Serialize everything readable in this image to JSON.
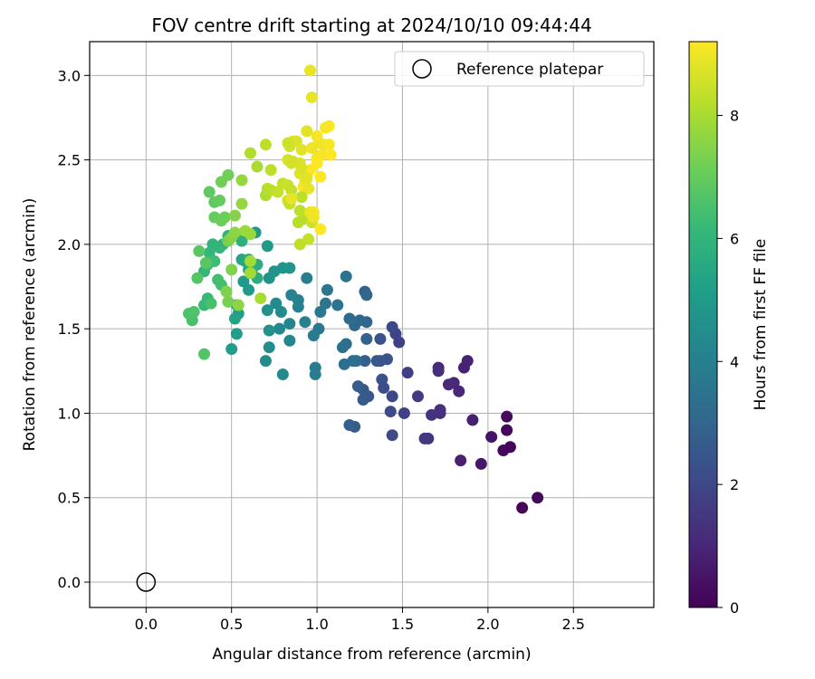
{
  "chart_data": {
    "type": "scatter",
    "title": "FOV centre drift starting at 2024/10/10 09:44:44",
    "xlabel": "Angular distance from reference (arcmin)",
    "ylabel": "Rotation from reference (arcmin)",
    "xlim": [
      -0.33,
      2.97
    ],
    "ylim": [
      -0.15,
      3.2
    ],
    "xticks": [
      "0.0",
      "0.5",
      "1.0",
      "1.5",
      "2.0",
      "2.5"
    ],
    "xtick_values": [
      0,
      0.5,
      1.0,
      1.5,
      2.0,
      2.5
    ],
    "yticks": [
      "0.0",
      "0.5",
      "1.0",
      "1.5",
      "2.0",
      "2.5",
      "3.0"
    ],
    "ytick_values": [
      0,
      0.5,
      1.0,
      1.5,
      2.0,
      2.5,
      3.0
    ],
    "grid": true,
    "legend_position": "top-right",
    "reference": {
      "name": "Reference platepar",
      "x": 0,
      "y": 0,
      "marker": "hollow circle"
    },
    "colorbar": {
      "label": "Hours from first FF file",
      "range": [
        0,
        9.2
      ],
      "ticks": [
        "0",
        "2",
        "4",
        "6",
        "8"
      ],
      "tick_values": [
        0,
        2,
        4,
        6,
        8
      ],
      "colormap": "viridis"
    },
    "colormap_stops": [
      "#440154",
      "#482878",
      "#3e4989",
      "#31688e",
      "#26828e",
      "#1f9e89",
      "#35b779",
      "#6ece58",
      "#b5de2b",
      "#fde725"
    ],
    "series": [
      {
        "points": [
          [
            2.2,
            0.44,
            0.1
          ],
          [
            2.29,
            0.5,
            0.2
          ],
          [
            2.09,
            0.78,
            0.2
          ],
          [
            2.13,
            0.8,
            0.15
          ],
          [
            2.11,
            0.9,
            0.2
          ],
          [
            2.11,
            0.98,
            0.25
          ],
          [
            2.02,
            0.86,
            0.5
          ],
          [
            1.96,
            0.7,
            0.6
          ],
          [
            1.84,
            0.72,
            0.8
          ],
          [
            1.91,
            0.96,
            0.8
          ],
          [
            1.88,
            1.31,
            0.9
          ],
          [
            1.86,
            1.27,
            0.9
          ],
          [
            1.83,
            1.13,
            1.0
          ],
          [
            1.8,
            1.18,
            1.0
          ],
          [
            1.77,
            1.17,
            1.1
          ],
          [
            1.71,
            1.27,
            1.1
          ],
          [
            1.71,
            1.25,
            1.2
          ],
          [
            1.72,
            1.0,
            1.2
          ],
          [
            1.72,
            1.02,
            1.3
          ],
          [
            1.67,
            0.99,
            1.4
          ],
          [
            1.65,
            0.85,
            1.4
          ],
          [
            1.63,
            0.85,
            1.5
          ],
          [
            1.59,
            1.1,
            1.6
          ],
          [
            1.53,
            1.24,
            1.7
          ],
          [
            1.51,
            1.0,
            1.8
          ],
          [
            1.48,
            1.42,
            1.8
          ],
          [
            1.46,
            1.47,
            1.9
          ],
          [
            1.44,
            1.51,
            2.0
          ],
          [
            1.44,
            1.1,
            2.0
          ],
          [
            1.43,
            1.01,
            2.1
          ],
          [
            1.44,
            0.87,
            2.1
          ],
          [
            1.39,
            1.15,
            2.2
          ],
          [
            1.38,
            1.2,
            2.3
          ],
          [
            1.37,
            1.44,
            2.3
          ],
          [
            1.41,
            1.32,
            2.4
          ],
          [
            1.37,
            1.31,
            2.4
          ],
          [
            1.35,
            1.31,
            2.5
          ],
          [
            1.3,
            1.1,
            2.5
          ],
          [
            1.27,
            1.08,
            2.6
          ],
          [
            1.27,
            1.14,
            2.6
          ],
          [
            1.24,
            1.16,
            2.7
          ],
          [
            1.22,
            0.92,
            2.7
          ],
          [
            1.19,
            0.93,
            2.8
          ],
          [
            1.28,
            1.31,
            2.8
          ],
          [
            1.29,
            1.44,
            2.9
          ],
          [
            1.28,
            1.72,
            2.9
          ],
          [
            1.29,
            1.7,
            3.0
          ],
          [
            1.29,
            1.54,
            3.0
          ],
          [
            1.25,
            1.55,
            3.1
          ],
          [
            1.22,
            1.52,
            3.1
          ],
          [
            1.19,
            1.56,
            3.2
          ],
          [
            1.23,
            1.31,
            3.2
          ],
          [
            1.21,
            1.31,
            3.3
          ],
          [
            1.17,
            1.41,
            3.3
          ],
          [
            1.15,
            1.39,
            3.4
          ],
          [
            1.16,
            1.29,
            3.4
          ],
          [
            1.17,
            1.81,
            3.5
          ],
          [
            1.12,
            1.64,
            3.5
          ],
          [
            1.06,
            1.73,
            3.6
          ],
          [
            1.05,
            1.65,
            3.6
          ],
          [
            1.02,
            1.6,
            3.7
          ],
          [
            1.01,
            1.5,
            3.7
          ],
          [
            0.98,
            1.46,
            3.8
          ],
          [
            0.99,
            1.27,
            3.8
          ],
          [
            0.99,
            1.23,
            3.9
          ],
          [
            0.94,
            1.8,
            3.9
          ],
          [
            0.93,
            1.54,
            4.0
          ],
          [
            0.89,
            1.63,
            4.0
          ],
          [
            0.89,
            1.67,
            4.1
          ],
          [
            0.85,
            1.7,
            4.1
          ],
          [
            0.84,
            1.53,
            4.2
          ],
          [
            0.84,
            1.43,
            4.2
          ],
          [
            0.8,
            1.23,
            4.3
          ],
          [
            0.78,
            1.5,
            4.3
          ],
          [
            0.79,
            1.6,
            4.4
          ],
          [
            0.76,
            1.65,
            4.4
          ],
          [
            0.72,
            1.39,
            4.5
          ],
          [
            0.7,
            1.31,
            4.5
          ],
          [
            0.72,
            1.49,
            4.6
          ],
          [
            0.71,
            1.61,
            4.6
          ],
          [
            0.72,
            1.8,
            4.7
          ],
          [
            0.75,
            1.84,
            4.7
          ],
          [
            0.8,
            1.86,
            4.8
          ],
          [
            0.84,
            1.86,
            4.8
          ],
          [
            0.71,
            1.99,
            4.9
          ],
          [
            0.64,
            2.07,
            4.9
          ],
          [
            0.6,
            1.73,
            5.0
          ],
          [
            0.57,
            1.78,
            5.0
          ],
          [
            0.53,
            1.47,
            5.1
          ],
          [
            0.5,
            1.38,
            5.1
          ],
          [
            0.54,
            1.59,
            5.2
          ],
          [
            0.52,
            1.56,
            5.3
          ],
          [
            0.53,
            1.64,
            5.4
          ],
          [
            0.56,
            1.91,
            5.4
          ],
          [
            0.58,
            1.9,
            5.5
          ],
          [
            0.6,
            1.85,
            5.5
          ],
          [
            0.6,
            1.91,
            5.6
          ],
          [
            0.62,
            1.85,
            5.6
          ],
          [
            0.65,
            1.8,
            5.7
          ],
          [
            0.65,
            1.88,
            5.7
          ],
          [
            0.56,
            2.02,
            5.8
          ],
          [
            0.52,
            2.05,
            5.8
          ],
          [
            0.48,
            2.05,
            5.9
          ],
          [
            0.45,
            2.0,
            5.9
          ],
          [
            0.43,
            1.98,
            6.0
          ],
          [
            0.39,
            2.0,
            6.0
          ],
          [
            0.37,
            1.95,
            6.1
          ],
          [
            0.34,
            1.84,
            6.1
          ],
          [
            0.36,
            1.68,
            6.2
          ],
          [
            0.34,
            1.64,
            6.2
          ],
          [
            0.36,
            1.88,
            6.3
          ],
          [
            0.4,
            1.9,
            6.3
          ],
          [
            0.42,
            1.79,
            6.4
          ],
          [
            0.44,
            1.76,
            6.4
          ],
          [
            0.38,
            1.65,
            6.5
          ],
          [
            0.27,
            1.55,
            6.5
          ],
          [
            0.25,
            1.59,
            6.6
          ],
          [
            0.28,
            1.6,
            6.6
          ],
          [
            0.34,
            1.35,
            6.7
          ],
          [
            0.3,
            1.8,
            6.7
          ],
          [
            0.31,
            1.96,
            6.8
          ],
          [
            0.35,
            1.89,
            6.8
          ],
          [
            0.37,
            2.31,
            6.9
          ],
          [
            0.4,
            2.25,
            6.9
          ],
          [
            0.4,
            2.16,
            7.0
          ],
          [
            0.43,
            2.26,
            7.0
          ],
          [
            0.44,
            2.14,
            7.1
          ],
          [
            0.46,
            2.16,
            7.1
          ],
          [
            0.44,
            2.37,
            7.2
          ],
          [
            0.48,
            2.41,
            7.2
          ],
          [
            0.48,
            2.02,
            7.3
          ],
          [
            0.48,
            1.66,
            7.3
          ],
          [
            0.5,
            1.85,
            7.4
          ],
          [
            0.47,
            1.72,
            7.4
          ],
          [
            0.5,
            2.04,
            7.5
          ],
          [
            0.52,
            2.17,
            7.5
          ],
          [
            0.52,
            2.07,
            7.6
          ],
          [
            0.54,
            1.64,
            7.6
          ],
          [
            0.56,
            2.24,
            7.7
          ],
          [
            0.56,
            2.38,
            7.7
          ],
          [
            0.58,
            2.08,
            7.8
          ],
          [
            0.61,
            2.06,
            7.8
          ],
          [
            0.61,
            1.83,
            7.9
          ],
          [
            0.61,
            1.9,
            7.9
          ],
          [
            0.67,
            1.68,
            8.0
          ],
          [
            0.65,
            2.46,
            8.0
          ],
          [
            0.61,
            2.54,
            8.1
          ],
          [
            0.7,
            2.29,
            8.1
          ],
          [
            0.73,
            2.32,
            8.2
          ],
          [
            0.71,
            2.33,
            8.2
          ],
          [
            0.73,
            2.44,
            8.3
          ],
          [
            0.7,
            2.59,
            8.3
          ],
          [
            0.77,
            2.31,
            8.4
          ],
          [
            0.8,
            2.36,
            8.4
          ],
          [
            0.83,
            2.26,
            8.5
          ],
          [
            0.83,
            2.35,
            8.5
          ],
          [
            0.83,
            2.5,
            8.6
          ],
          [
            0.86,
            2.49,
            8.6
          ],
          [
            0.86,
            2.61,
            8.7
          ],
          [
            0.88,
            2.61,
            8.7
          ],
          [
            0.91,
            2.56,
            8.8
          ],
          [
            0.94,
            2.67,
            8.8
          ],
          [
            0.97,
            2.87,
            8.9
          ],
          [
            0.96,
            3.03,
            8.9
          ],
          [
            0.97,
            2.57,
            9.0
          ],
          [
            1.01,
            2.6,
            9.0
          ],
          [
            1.0,
            2.51,
            9.1
          ],
          [
            1.03,
            2.53,
            9.1
          ],
          [
            1.04,
            2.59,
            9.0
          ],
          [
            1.07,
            2.59,
            9.1
          ],
          [
            1.08,
            2.53,
            9.2
          ],
          [
            1.07,
            2.7,
            9.2
          ],
          [
            1.05,
            2.69,
            9.1
          ],
          [
            1.0,
            2.64,
            9.1
          ],
          [
            1.0,
            2.48,
            9.2
          ],
          [
            1.02,
            2.4,
            9.2
          ],
          [
            0.96,
            2.44,
            9.2
          ],
          [
            0.94,
            2.4,
            9.1
          ],
          [
            0.92,
            2.34,
            9.1
          ],
          [
            0.93,
            2.37,
            9.0
          ],
          [
            0.95,
            2.33,
            8.9
          ],
          [
            0.94,
            2.39,
            8.8
          ],
          [
            0.9,
            2.42,
            8.8
          ],
          [
            0.9,
            2.48,
            8.7
          ],
          [
            0.91,
            2.45,
            8.7
          ],
          [
            0.85,
            2.48,
            8.6
          ],
          [
            0.84,
            2.58,
            8.6
          ],
          [
            0.83,
            2.6,
            8.5
          ],
          [
            0.85,
            2.32,
            8.4
          ],
          [
            0.84,
            2.24,
            8.4
          ],
          [
            0.91,
            2.28,
            8.3
          ],
          [
            0.92,
            2.15,
            8.2
          ],
          [
            0.89,
            2.13,
            8.2
          ],
          [
            0.9,
            2.2,
            8.3
          ],
          [
            0.9,
            2.0,
            8.3
          ],
          [
            0.95,
            2.03,
            8.4
          ],
          [
            0.97,
            2.13,
            8.5
          ],
          [
            0.96,
            2.19,
            8.9
          ],
          [
            0.98,
            2.16,
            9.0
          ],
          [
            1.02,
            2.09,
            9.2
          ],
          [
            0.98,
            2.19,
            9.1
          ],
          [
            0.97,
            2.18,
            9.0
          ],
          [
            0.85,
            2.27,
            8.9
          ]
        ]
      }
    ]
  }
}
